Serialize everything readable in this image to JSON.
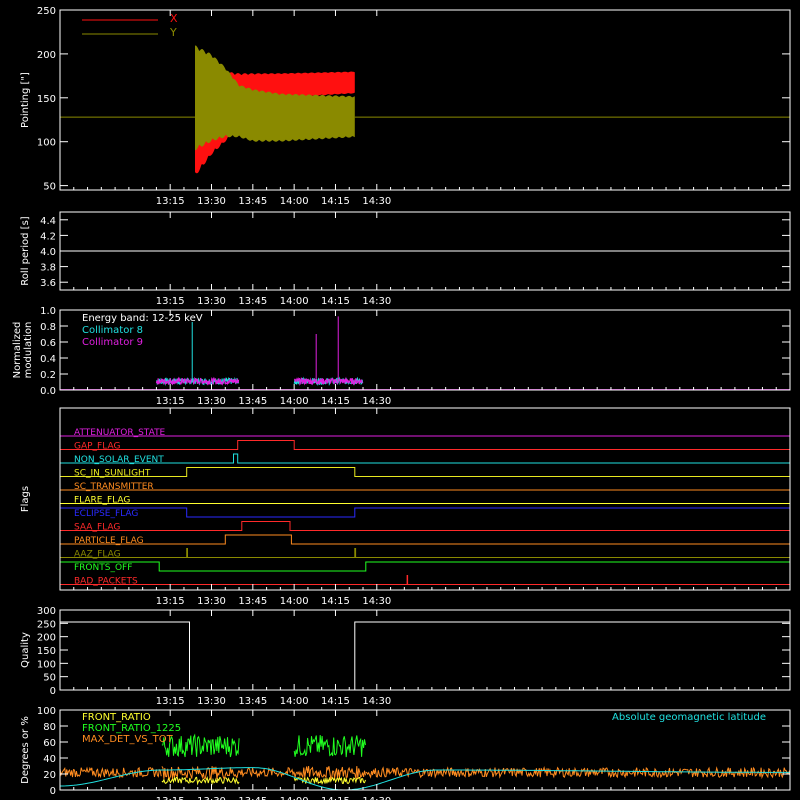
{
  "colors": {
    "background": "#000000",
    "axis": "#ffffff",
    "x_pointing": "#ff1010",
    "y_pointing": "#8a8a00",
    "cyan": "#20e0e0",
    "magenta": "#e020e0",
    "green": "#20ff20",
    "orange": "#ff8c20",
    "yellow": "#ffff30"
  },
  "time_axis": {
    "range_minutes": [
      1055,
      1320
    ],
    "tick_labels": [
      "13:15",
      "13:30",
      "13:45",
      "14:00",
      "14:15",
      "14:30"
    ],
    "tick_minutes": [
      1095,
      1110,
      1125,
      1140,
      1155,
      1170
    ]
  },
  "chart_data": [
    {
      "id": "pointing",
      "type": "line",
      "ylabel": "Pointing [\"]",
      "ylim": [
        45,
        250
      ],
      "yticks": [
        "50",
        "100",
        "150",
        "200",
        "250"
      ],
      "ytick_values": [
        50,
        100,
        150,
        200,
        250
      ],
      "legend": [
        "X",
        "Y"
      ],
      "series": [
        {
          "name": "X",
          "baseline": 128,
          "envelope": [
            [
              1104,
              60,
              200
            ],
            [
              1110,
              85,
              190
            ],
            [
              1115,
              100,
              180
            ],
            [
              1120,
              115,
              178
            ],
            [
              1125,
              135,
              178
            ],
            [
              1135,
              150,
              178
            ],
            [
              1162,
              155,
              180
            ]
          ]
        },
        {
          "name": "Y",
          "baseline": 128,
          "envelope": [
            [
              1104,
              90,
              210
            ],
            [
              1110,
              100,
              200
            ],
            [
              1115,
              105,
              185
            ],
            [
              1120,
              105,
              165
            ],
            [
              1125,
              100,
              160
            ],
            [
              1135,
              100,
              155
            ],
            [
              1162,
              105,
              152
            ]
          ]
        }
      ]
    },
    {
      "id": "roll",
      "type": "line",
      "ylabel": "Roll period [s]",
      "ylim": [
        3.5,
        4.5
      ],
      "yticks": [
        "3.6",
        "3.8",
        "4.0",
        "4.2",
        "4.4"
      ],
      "ytick_values": [
        3.6,
        3.8,
        4.0,
        4.2,
        4.4
      ],
      "value": 4.0
    },
    {
      "id": "modulation",
      "type": "line",
      "ylabel": "Normalized modulation",
      "ylim": [
        0,
        1
      ],
      "yticks": [
        "0.0",
        "0.2",
        "0.4",
        "0.6",
        "0.8",
        "1.0"
      ],
      "ytick_values": [
        0,
        0.2,
        0.4,
        0.6,
        0.8,
        1.0
      ],
      "legend_title": "Energy band: 12-25 keV",
      "legend": [
        "Collimator 8",
        "Collimator 9"
      ],
      "segments": [
        [
          1090,
          1120
        ],
        [
          1140,
          1165
        ]
      ],
      "spikes": [
        {
          "series": "Collimator 8",
          "minute": 1103,
          "value": 0.85
        },
        {
          "series": "Collimator 9",
          "minute": 1148,
          "value": 0.7
        },
        {
          "series": "Collimator 9",
          "minute": 1156,
          "value": 0.92
        }
      ]
    },
    {
      "id": "flags",
      "type": "step",
      "ylabel": "Flags",
      "flags": [
        {
          "name": "ATTENUATOR_STATE",
          "color": "#e020e0",
          "steps": [
            [
              1055,
              0
            ]
          ]
        },
        {
          "name": "GAP_FLAG",
          "color": "#ff2a2a",
          "steps": [
            [
              1055,
              0
            ],
            [
              1119.5,
              1
            ],
            [
              1140,
              0
            ]
          ]
        },
        {
          "name": "NON_SOLAR_EVENT",
          "color": "#20e0e0",
          "steps": [
            [
              1055,
              0
            ],
            [
              1118,
              1
            ],
            [
              1119.5,
              0
            ]
          ]
        },
        {
          "name": "SC_IN_SUNLIGHT",
          "color": "#e8e820",
          "steps": [
            [
              1055,
              0
            ],
            [
              1101,
              1
            ],
            [
              1162,
              0
            ]
          ]
        },
        {
          "name": "SC_TRANSMITTER",
          "color": "#ff8c20",
          "steps": [
            [
              1055,
              0
            ]
          ]
        },
        {
          "name": "FLARE_FLAG",
          "color": "#ffff30",
          "steps": [
            [
              1055,
              0
            ]
          ]
        },
        {
          "name": "ECLIPSE_FLAG",
          "color": "#2a2aff",
          "steps": [
            [
              1055,
              1
            ],
            [
              1101,
              0
            ],
            [
              1162,
              1
            ]
          ]
        },
        {
          "name": "SAA_FLAG",
          "color": "#ff2a2a",
          "steps": [
            [
              1055,
              0
            ],
            [
              1121,
              1
            ],
            [
              1138.5,
              0
            ]
          ]
        },
        {
          "name": "PARTICLE_FLAG",
          "color": "#ff8c20",
          "steps": [
            [
              1055,
              0
            ],
            [
              1115,
              1
            ],
            [
              1139,
              0
            ]
          ]
        },
        {
          "name": "AAZ_FLAG",
          "color": "#8a8a00",
          "steps": [
            [
              1055,
              0
            ],
            [
              1101,
              1
            ],
            [
              1101.3,
              0
            ],
            [
              1162,
              1
            ],
            [
              1162.3,
              0
            ]
          ]
        },
        {
          "name": "FRONTS_OFF",
          "color": "#20ff20",
          "steps": [
            [
              1055,
              1
            ],
            [
              1091,
              0
            ],
            [
              1166,
              1
            ]
          ]
        },
        {
          "name": "BAD_PACKETS",
          "color": "#ff2a2a",
          "steps": [
            [
              1055,
              0
            ],
            [
              1181,
              1
            ],
            [
              1181.2,
              0
            ]
          ]
        }
      ]
    },
    {
      "id": "quality",
      "type": "line",
      "ylabel": "Quality",
      "ylim": [
        0,
        300
      ],
      "yticks": [
        "0",
        "50",
        "100",
        "150",
        "200",
        "250",
        "300"
      ],
      "ytick_values": [
        0,
        50,
        100,
        150,
        200,
        250,
        300
      ],
      "points": [
        [
          1055,
          255
        ],
        [
          1102,
          255
        ],
        [
          1102,
          0
        ],
        [
          1162,
          0
        ],
        [
          1162,
          255
        ],
        [
          1320,
          255
        ]
      ]
    },
    {
      "id": "ratios",
      "type": "line",
      "ylabel": "Degrees or %",
      "ylim": [
        0,
        100
      ],
      "yticks": [
        "0",
        "20",
        "40",
        "60",
        "80",
        "100"
      ],
      "ytick_values": [
        0,
        20,
        40,
        60,
        80,
        100
      ],
      "legend": [
        "FRONT_RATIO",
        "FRONT_RATIO_1225",
        "MAX_DET_VS_TOT"
      ],
      "right_legend": "Absolute geomagnetic latitude",
      "series": [
        {
          "name": "FRONT_RATIO",
          "color": "#ffff30",
          "level": 12
        },
        {
          "name": "FRONT_RATIO_1225",
          "color": "#20ff20",
          "level": 55
        },
        {
          "name": "MAX_DET_VS_TOT",
          "color": "#ff8c20",
          "level": 22
        },
        {
          "name": "Absolute geomagnetic latitude",
          "color": "#20e0e0",
          "points": [
            [
              1055,
              5
            ],
            [
              1092,
              25
            ],
            [
              1125,
              28
            ],
            [
              1158,
              0
            ],
            [
              1192,
              25
            ],
            [
              1320,
              22
            ]
          ]
        }
      ]
    }
  ]
}
